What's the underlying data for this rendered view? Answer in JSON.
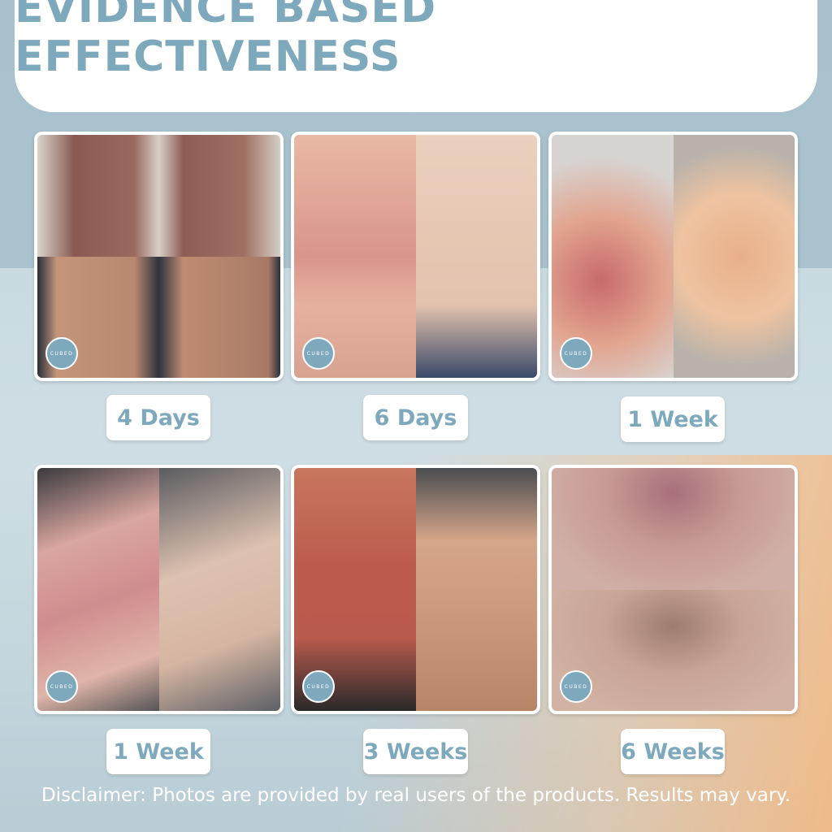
{
  "title": "EVIDENCE BASED EFFECTIVENESS",
  "brand": "CUBED",
  "results": [
    {
      "label": "4 Days"
    },
    {
      "label": "6 Days"
    },
    {
      "label": "1 Week"
    },
    {
      "label": "1 Week"
    },
    {
      "label": "3 Weeks"
    },
    {
      "label": "6 Weeks"
    }
  ],
  "disclaimer": "Disclaimer: Photos are provided by real users of the products. Results may vary.",
  "colors": {
    "accent": "#7ea9bd",
    "background": "#a9c2ce",
    "peach": "#f4b988"
  }
}
